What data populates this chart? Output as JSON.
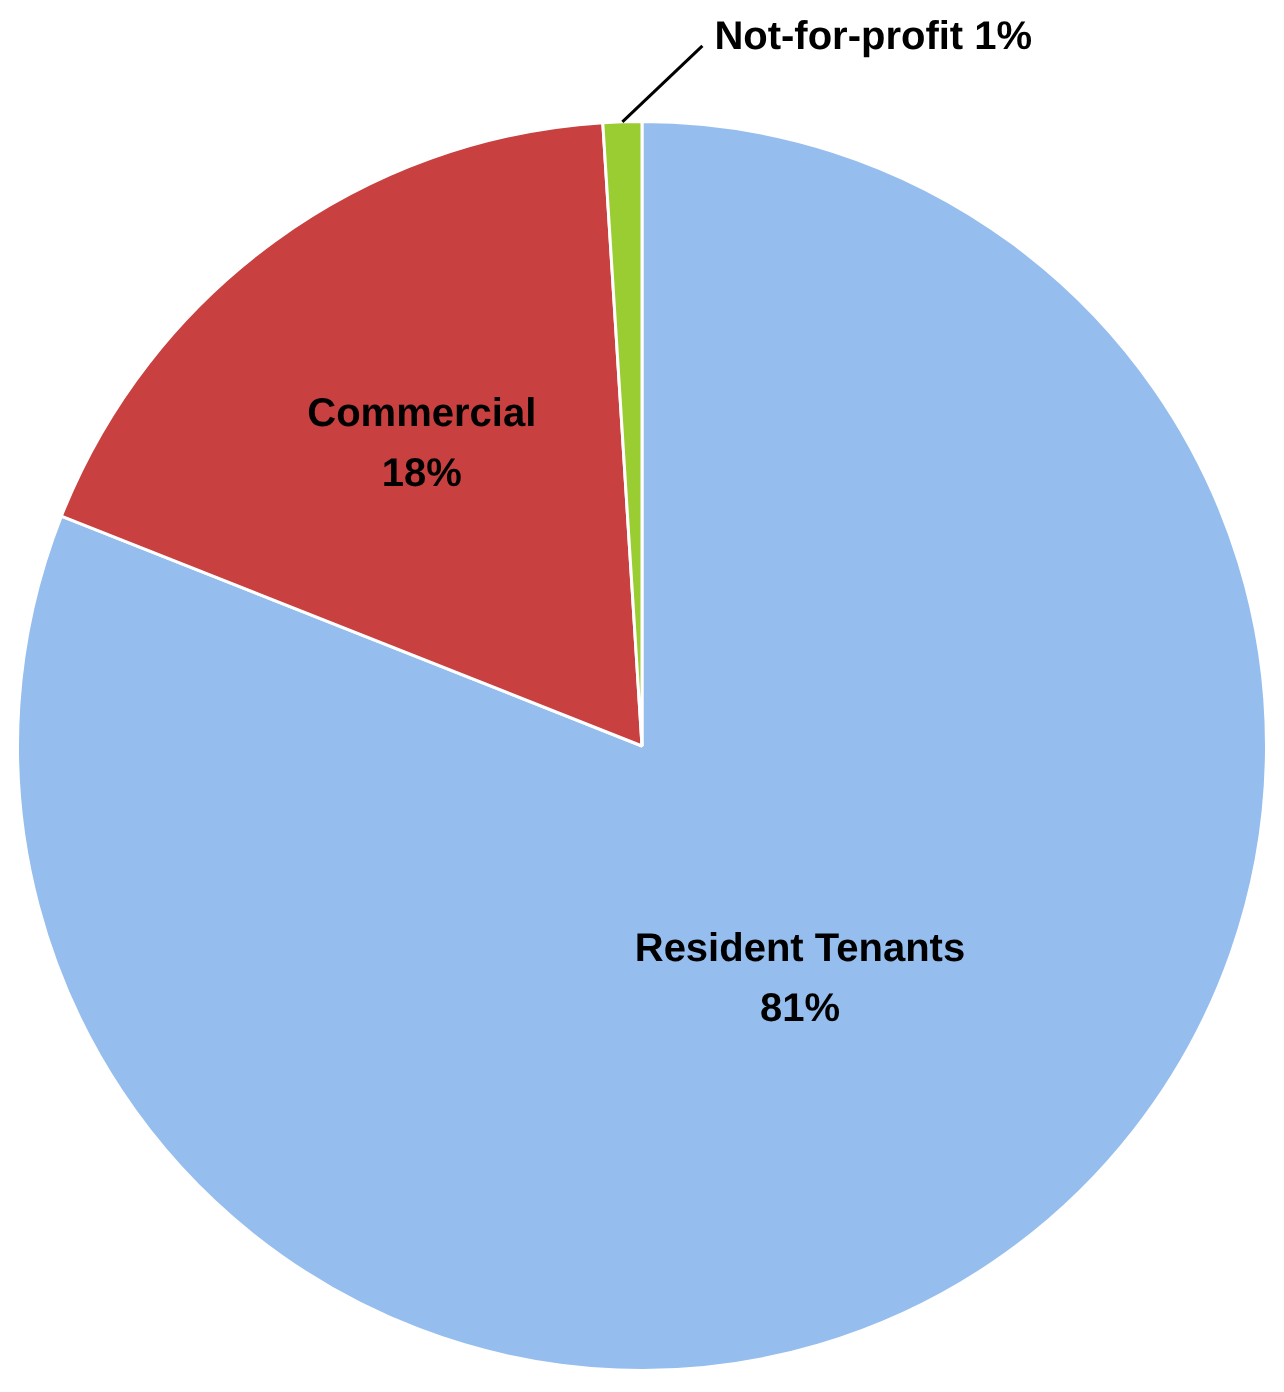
{
  "chart_data": {
    "type": "pie",
    "categories": [
      "Resident Tenants",
      "Commercial",
      "Not-for-profit"
    ],
    "values": [
      81,
      18,
      1
    ],
    "value_labels": [
      "81%",
      "18%",
      "1%"
    ],
    "colors": [
      "#95bdee",
      "#c8403f",
      "#9acd32"
    ],
    "legend": false
  }
}
